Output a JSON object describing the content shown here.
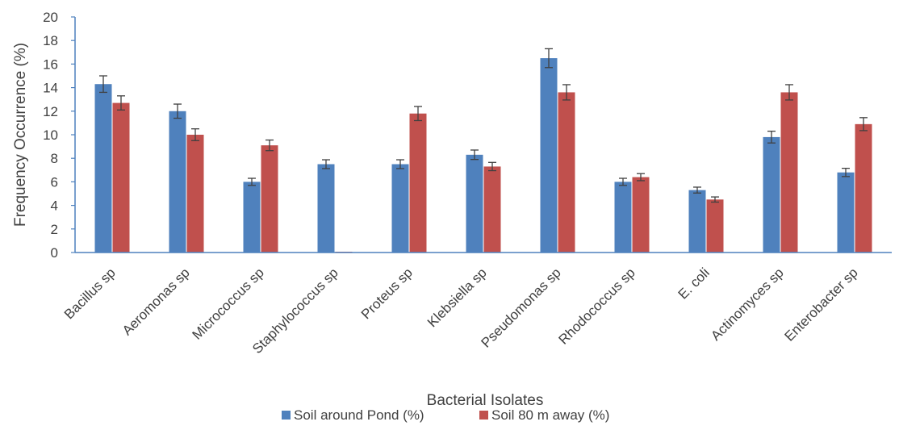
{
  "chart_data": {
    "type": "bar",
    "title": "",
    "xlabel": "Bacterial Isolates",
    "ylabel": "Frequency Occurrence (%)",
    "ylim": [
      0,
      20
    ],
    "yticks": [
      0,
      2,
      4,
      6,
      8,
      10,
      12,
      14,
      16,
      18,
      20
    ],
    "grid": false,
    "legend_position": "bottom",
    "categories": [
      "Bacillus sp",
      "Aeromonas sp",
      "Micrococcus sp",
      "Staphylococcus sp",
      "Proteus sp",
      "Klebsiella sp",
      "Pseudomonas sp",
      "Rhodococcus sp",
      "E. coli",
      "Actinomyces sp",
      "Enterobacter sp"
    ],
    "series": [
      {
        "name": "Soil around Pond (%)",
        "color": "#4f81bd",
        "values": [
          14.3,
          12.0,
          6.0,
          7.5,
          7.5,
          8.3,
          16.5,
          6.0,
          5.3,
          9.8,
          6.8
        ],
        "error": [
          0.7,
          0.6,
          0.3,
          0.375,
          0.375,
          0.4,
          0.8,
          0.3,
          0.25,
          0.5,
          0.35
        ]
      },
      {
        "name": "Soil 80 m away (%)",
        "color": "#c0504d",
        "values": [
          12.7,
          10.0,
          9.1,
          0.0,
          11.8,
          7.3,
          13.6,
          6.4,
          4.5,
          13.6,
          10.9
        ],
        "error": [
          0.6,
          0.5,
          0.45,
          0.0,
          0.6,
          0.35,
          0.65,
          0.3,
          0.22,
          0.65,
          0.55
        ]
      }
    ]
  }
}
